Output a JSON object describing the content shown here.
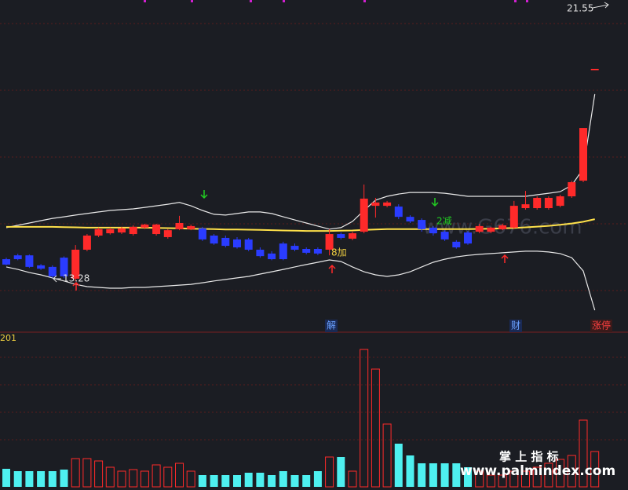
{
  "chart_data": {
    "type": "candlestick",
    "categories": [
      null,
      null,
      null,
      null,
      null,
      null,
      null,
      null,
      null,
      null,
      null,
      null,
      null,
      null,
      null,
      null,
      null,
      null,
      null,
      null,
      null,
      null,
      null,
      null,
      null,
      null,
      null,
      null,
      null,
      null,
      null,
      null,
      null,
      null,
      null,
      null,
      null,
      null,
      null,
      null,
      null,
      null,
      null,
      null,
      null,
      null,
      null,
      null,
      null,
      null,
      null,
      null
    ],
    "open": [
      14.14,
      14.29,
      14.29,
      13.9,
      13.84,
      14.2,
      13.38,
      14.51,
      15.06,
      15.15,
      15.18,
      15.12,
      15.37,
      15.12,
      15.0,
      15.31,
      15.31,
      15.34,
      15.06,
      14.97,
      14.91,
      14.91,
      14.51,
      14.36,
      14.75,
      14.66,
      14.54,
      14.54,
      14.51,
      15.12,
      14.94,
      15.21,
      16.22,
      16.22,
      16.19,
      15.79,
      15.67,
      15.37,
      15.21,
      14.82,
      15.18,
      15.21,
      15.21,
      15.31,
      15.37,
      16.13,
      16.13,
      16.13,
      16.22,
      16.59,
      17.2,
      21.55
    ],
    "high": [
      14.2,
      14.35,
      14.32,
      13.95,
      13.9,
      14.25,
      14.69,
      15.12,
      15.37,
      15.37,
      15.4,
      15.46,
      15.52,
      15.52,
      15.31,
      15.83,
      15.49,
      15.4,
      15.12,
      15.06,
      15.0,
      14.97,
      14.6,
      14.45,
      14.82,
      14.75,
      14.6,
      14.6,
      15.31,
      15.18,
      15.21,
      17.05,
      16.53,
      16.41,
      16.28,
      15.85,
      15.73,
      15.43,
      15.27,
      14.88,
      15.24,
      15.52,
      15.4,
      15.52,
      16.41,
      16.8,
      16.59,
      16.59,
      16.65,
      17.2,
      19.25,
      21.55
    ],
    "low": [
      13.9,
      14.1,
      13.8,
      13.72,
      13.42,
      13.4,
      13.28,
      14.45,
      15.0,
      15.1,
      15.12,
      15.06,
      15.31,
      15.06,
      14.94,
      15.27,
      15.27,
      14.85,
      14.7,
      14.6,
      14.55,
      14.45,
      14.2,
      14.1,
      14.1,
      14.45,
      14.33,
      14.3,
      14.29,
      14.91,
      14.88,
      15.15,
      15.76,
      16.16,
      15.7,
      15.55,
      15.21,
      15.06,
      14.85,
      14.55,
      14.7,
      15.15,
      15.15,
      15.27,
      15.31,
      16.07,
      16.07,
      16.07,
      16.16,
      16.53,
      17.14,
      21.55
    ],
    "close": [
      13.93,
      14.14,
      13.84,
      13.77,
      13.47,
      13.47,
      14.51,
      15.06,
      15.31,
      15.31,
      15.34,
      15.4,
      15.49,
      15.49,
      15.27,
      15.55,
      15.43,
      14.91,
      14.75,
      14.66,
      14.6,
      14.51,
      14.26,
      14.14,
      14.14,
      14.51,
      14.39,
      14.36,
      15.12,
      14.97,
      15.15,
      16.5,
      16.35,
      16.35,
      15.79,
      15.61,
      15.31,
      15.15,
      14.91,
      14.6,
      14.75,
      15.43,
      15.37,
      15.46,
      16.22,
      16.28,
      16.53,
      16.53,
      16.59,
      17.14,
      19.25,
      21.55
    ],
    "upper_band": [
      15.37,
      15.46,
      15.55,
      15.64,
      15.73,
      15.79,
      15.86,
      15.92,
      15.98,
      16.04,
      16.07,
      16.1,
      16.16,
      16.22,
      16.28,
      16.35,
      16.22,
      16.04,
      15.89,
      15.86,
      15.92,
      15.98,
      15.98,
      15.92,
      15.79,
      15.67,
      15.55,
      15.43,
      15.31,
      15.37,
      15.61,
      16.04,
      16.44,
      16.59,
      16.68,
      16.74,
      16.74,
      16.74,
      16.71,
      16.65,
      16.59,
      16.59,
      16.59,
      16.59,
      16.59,
      16.59,
      16.65,
      16.71,
      16.77,
      17.02,
      17.66,
      20.57
    ],
    "lower_band": [
      13.84,
      13.74,
      13.62,
      13.53,
      13.41,
      13.29,
      13.16,
      13.07,
      13.04,
      13.01,
      13.01,
      13.04,
      13.04,
      13.07,
      13.1,
      13.13,
      13.16,
      13.22,
      13.29,
      13.35,
      13.41,
      13.47,
      13.56,
      13.65,
      13.74,
      13.84,
      13.93,
      14.02,
      14.11,
      14.05,
      13.84,
      13.65,
      13.53,
      13.47,
      13.53,
      13.65,
      13.84,
      14.02,
      14.14,
      14.23,
      14.29,
      14.33,
      14.36,
      14.39,
      14.42,
      14.45,
      14.45,
      14.42,
      14.36,
      14.2,
      13.68,
      12.15
    ],
    "ma": [
      15.4,
      15.4,
      15.4,
      15.4,
      15.4,
      15.39,
      15.38,
      15.37,
      15.37,
      15.37,
      15.37,
      15.37,
      15.37,
      15.36,
      15.35,
      15.34,
      15.33,
      15.32,
      15.31,
      15.3,
      15.3,
      15.29,
      15.28,
      15.27,
      15.26,
      15.25,
      15.24,
      15.24,
      15.24,
      15.25,
      15.26,
      15.28,
      15.3,
      15.31,
      15.31,
      15.31,
      15.31,
      15.31,
      15.31,
      15.31,
      15.31,
      15.32,
      15.33,
      15.34,
      15.36,
      15.38,
      15.41,
      15.44,
      15.48,
      15.53,
      15.6,
      15.7
    ],
    "ylim": [
      12,
      24.24
    ],
    "volume": [
      23,
      20,
      20,
      20,
      20,
      22,
      36,
      36,
      33,
      25,
      20,
      22,
      20,
      28,
      25,
      30,
      20,
      15,
      15,
      15,
      15,
      18,
      18,
      15,
      20,
      15,
      15,
      20,
      38,
      38,
      20,
      175,
      150,
      80,
      55,
      40,
      30,
      30,
      30,
      30,
      25,
      20,
      15,
      15,
      20,
      20,
      25,
      30,
      35,
      40,
      85,
      45
    ],
    "volume_ylim": [
      0,
      190
    ],
    "up_color": "#ff2a2a",
    "down_color": "#2a3cff",
    "volume_down_color": "#4ef0f0",
    "band_color": "#e8e8e8",
    "ma_color": "#ffe14a",
    "annotations": [
      "21.55",
      "13.28",
      "8加",
      "2减",
      "解",
      "财",
      "涨停"
    ],
    "volume_label": "201",
    "watermark": "www.palmindex.com",
    "watermark_brand": "掌 上 指 标",
    "watermark_center": "www.G676.com"
  }
}
